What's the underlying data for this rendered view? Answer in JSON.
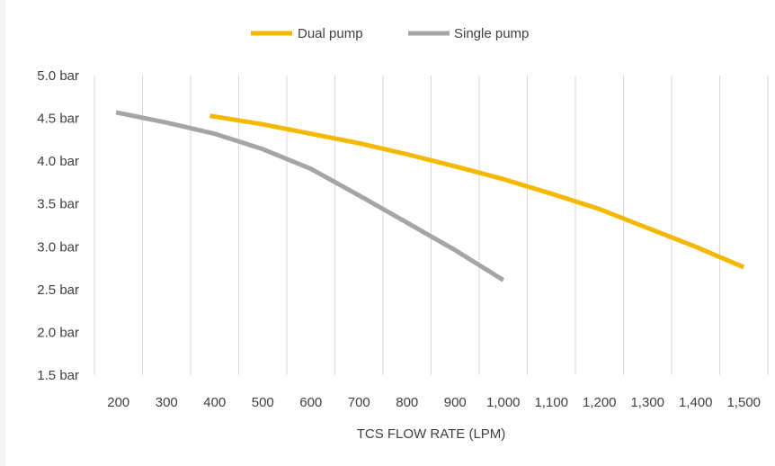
{
  "chart_data": {
    "type": "line",
    "title": "",
    "xlabel": "TCS FLOW RATE (LPM)",
    "ylabel": "",
    "x_ticks": [
      200,
      300,
      400,
      500,
      600,
      700,
      800,
      900,
      1000,
      1100,
      1200,
      1300,
      1400,
      1500
    ],
    "x_tick_labels": [
      "200",
      "300",
      "400",
      "500",
      "600",
      "700",
      "800",
      "900",
      "1,000",
      "1,100",
      "1,200",
      "1,300",
      "1,400",
      "1,500"
    ],
    "y_ticks": [
      1.5,
      2.0,
      2.5,
      3.0,
      3.5,
      4.0,
      4.5,
      5.0
    ],
    "y_tick_labels": [
      "1.5 bar",
      "2.0 bar",
      "2.5 bar",
      "3.0 bar",
      "3.5 bar",
      "4.0 bar",
      "4.5 bar",
      "5.0 bar"
    ],
    "xlim": [
      150,
      1550
    ],
    "ylim": [
      1.5,
      5.0
    ],
    "grid": "vertical",
    "legend_position": "top",
    "series": [
      {
        "name": "Dual pump",
        "color": "#f5b800",
        "x": [
          390,
          500,
          600,
          700,
          800,
          900,
          1000,
          1100,
          1200,
          1300,
          1400,
          1500
        ],
        "y": [
          4.53,
          4.43,
          4.32,
          4.21,
          4.08,
          3.94,
          3.79,
          3.62,
          3.44,
          3.22,
          3.0,
          2.76
        ]
      },
      {
        "name": "Single pump",
        "color": "#a5a5a5",
        "x": [
          195,
          300,
          400,
          500,
          600,
          700,
          800,
          900,
          1000
        ],
        "y": [
          4.57,
          4.45,
          4.32,
          4.14,
          3.91,
          3.6,
          3.28,
          2.96,
          2.61
        ]
      }
    ]
  }
}
